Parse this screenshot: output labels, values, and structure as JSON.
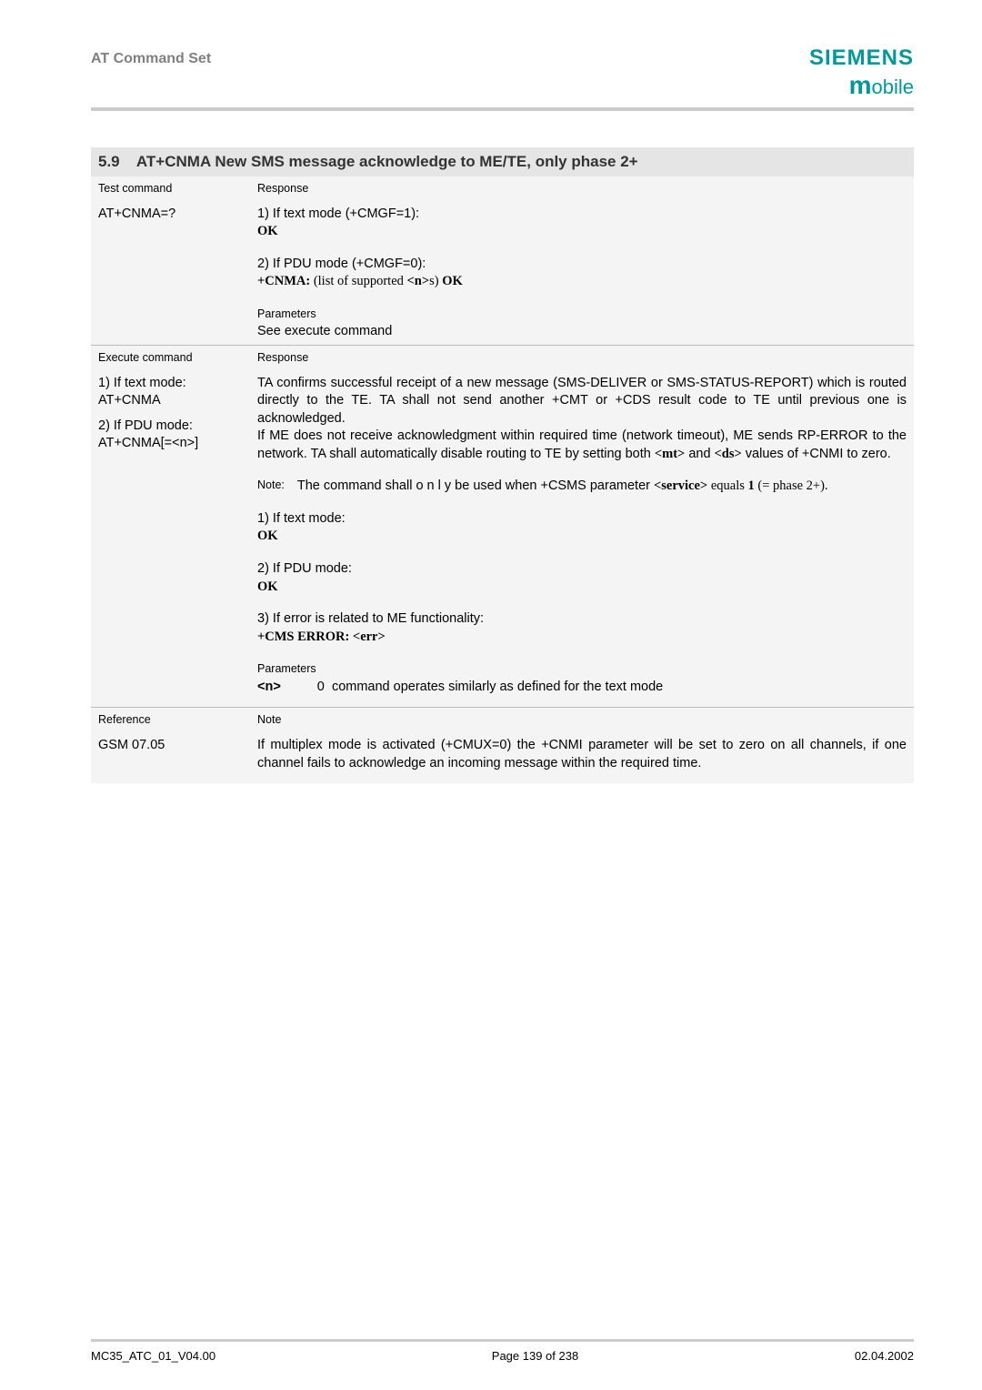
{
  "header": {
    "doc_title": "AT Command Set",
    "brand": "SIEMENS",
    "brand_sub_m": "m",
    "brand_sub_rest": "obile"
  },
  "section": {
    "number": "5.9",
    "title": "AT+CNMA  New SMS message acknowledge to ME/TE, only phase 2+"
  },
  "test_cmd": {
    "label": "Test command",
    "command": "AT+CNMA=?",
    "response_label": "Response",
    "line1": "1) If text mode (+CMGF=1):",
    "ok1": "OK",
    "line2": "2) If PDU mode (+CMGF=0):",
    "cnma_prefix": "+CNMA: ",
    "cnma_mid": "(list of supported ",
    "cnma_n": "<n>",
    "cnma_suffix": "s) ",
    "cnma_ok": "OK",
    "params_label": "Parameters",
    "params_text": "See execute command"
  },
  "exec_cmd": {
    "label": "Execute command",
    "mode1_label": "1) If text mode:",
    "mode1_cmd": "AT+CNMA",
    "mode2_label": "2) If PDU mode:",
    "mode2_cmd": "AT+CNMA[=<n>]",
    "response_label": "Response",
    "para1": "TA confirms successful receipt of a new message (SMS-DELIVER or SMS-STATUS-REPORT) which is routed directly to the TE. TA shall not send another +CMT or +CDS result code to TE until previous one is acknowledged.",
    "para2_a": "If ME does not receive acknowledgment within required time (network timeout), ME sends RP-ERROR to the network. TA shall automatically disable routing to TE by setting both ",
    "para2_mt": "<mt>",
    "para2_b": " and ",
    "para2_ds": "<ds>",
    "para2_c": " values of +CNMI to zero.",
    "note_label": "Note:",
    "note_a": "The command shall  o n l y  be used when +CSMS parameter ",
    "note_serv": "<service>",
    "note_b": " equals ",
    "note_one": "1",
    "note_c": " (= phase 2+).",
    "r1_label": "1) If text mode:",
    "r1_ok": "OK",
    "r2_label": "2) If PDU mode:",
    "r2_ok": "OK",
    "r3_label": "3) If error is related to ME functionality:",
    "r3_err": "+CMS ERROR: <err>",
    "params_label": "Parameters",
    "param_n": "<n>",
    "param_val": "0",
    "param_desc": "command operates similarly as defined for the text mode"
  },
  "ref": {
    "label": "Reference",
    "value": "GSM 07.05",
    "note_label": "Note",
    "note_text": "If multiplex mode is activated (+CMUX=0) the +CNMI parameter will be set to zero on all channels, if one channel fails to acknowledge an incoming message within the required time."
  },
  "footer": {
    "left": "MC35_ATC_01_V04.00",
    "center": "Page 139 of 238",
    "right": "02.04.2002"
  },
  "colors": {
    "teal": "#009999",
    "gray_header": "#808080",
    "section_bg": "#e5e5e5",
    "table_bg": "#f4f4f4",
    "hr": "#cccccc"
  }
}
